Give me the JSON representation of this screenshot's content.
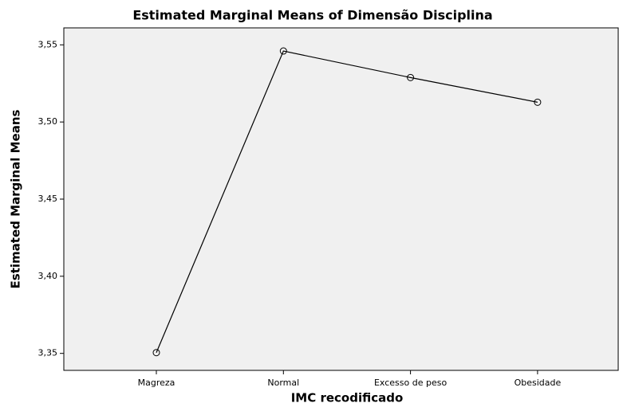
{
  "chart_data": {
    "type": "line",
    "title": "Estimated Marginal Means of Dimensão Disciplina",
    "x_label": "IMC recodificado",
    "y_label": "Estimated Marginal Means",
    "categories": [
      "Magreza",
      "Normal",
      "Excesso de peso",
      "Obesidade"
    ],
    "values": [
      3.3505,
      3.546,
      3.5288,
      3.5128
    ],
    "color": "#000000",
    "ylim": [
      3.339,
      3.561
    ],
    "yticks": [
      {
        "value": 3.35,
        "label": "3,35"
      },
      {
        "value": 3.4,
        "label": "3,40"
      },
      {
        "value": 3.45,
        "label": "3,45"
      },
      {
        "value": 3.5,
        "label": "3,50"
      },
      {
        "value": 3.55,
        "label": "3,55"
      }
    ],
    "grid": false
  }
}
